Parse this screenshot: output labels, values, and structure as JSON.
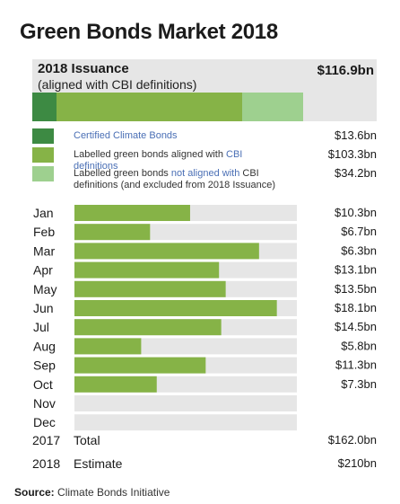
{
  "title": "Green Bonds Market 2018",
  "issuance": {
    "title": "2018 Issuance",
    "subtitle": "(aligned with CBI definitions)",
    "total": "$116.9bn"
  },
  "legend": [
    {
      "text_parts": [
        {
          "t": "Certified Climate Bonds",
          "blue": true
        }
      ],
      "value": "$13.6bn",
      "color": "#3d8a43"
    },
    {
      "text_parts": [
        {
          "t": "Labelled green bonds aligned with ",
          "blue": false
        },
        {
          "t": "CBI definitions",
          "blue": true
        }
      ],
      "value": "$103.3bn",
      "color": "#86b347"
    },
    {
      "text_parts": [
        {
          "t": "Labelled green bonds ",
          "blue": false
        },
        {
          "t": "not aligned with",
          "blue": true
        },
        {
          "t": " CBI definitions (and excluded from 2018 Issuance)",
          "blue": false
        }
      ],
      "value": "$34.2bn",
      "color": "#9ed08f"
    }
  ],
  "chart_data": {
    "type": "bar",
    "orientation": "horizontal",
    "stacked_issuance": {
      "segments": [
        {
          "name": "Certified Climate Bonds",
          "value": 13.6,
          "color": "#3d8a43"
        },
        {
          "name": "Labelled green bonds aligned with CBI definitions",
          "value": 103.3,
          "color": "#86b347"
        },
        {
          "name": "Labelled green bonds not aligned with CBI definitions (and excluded from 2018 Issuance)",
          "value": 34.2,
          "color": "#9ed08f"
        }
      ]
    },
    "categories": [
      "Jan",
      "Feb",
      "Mar",
      "Apr",
      "May",
      "Jun",
      "Jul",
      "Aug",
      "Sep",
      "Oct",
      "Nov",
      "Dec"
    ],
    "values": [
      10.3,
      6.7,
      6.3,
      13.1,
      13.5,
      18.1,
      14.5,
      5.8,
      11.3,
      7.3,
      null,
      null
    ],
    "value_labels": [
      "$10.3bn",
      "$6.7bn",
      "$6.3bn",
      "$13.1bn",
      "$13.5bn",
      "$18.1bn",
      "$14.5bn",
      "$5.8bn",
      "$11.3bn",
      "$7.3bn",
      "",
      ""
    ],
    "bar_fill_fractions": [
      0.52,
      0.34,
      0.83,
      0.65,
      0.68,
      0.91,
      0.66,
      0.3,
      0.59,
      0.37,
      0,
      0
    ],
    "bar_color": "#86b347",
    "track_color": "#e6e6e6"
  },
  "footer": [
    {
      "year": "2017",
      "label": "Total",
      "value": "$162.0bn"
    },
    {
      "year": "2018",
      "label": "Estimate",
      "value": "$210bn"
    }
  ],
  "source": {
    "label": "Source:",
    "text": " Climate Bonds Initiative"
  }
}
